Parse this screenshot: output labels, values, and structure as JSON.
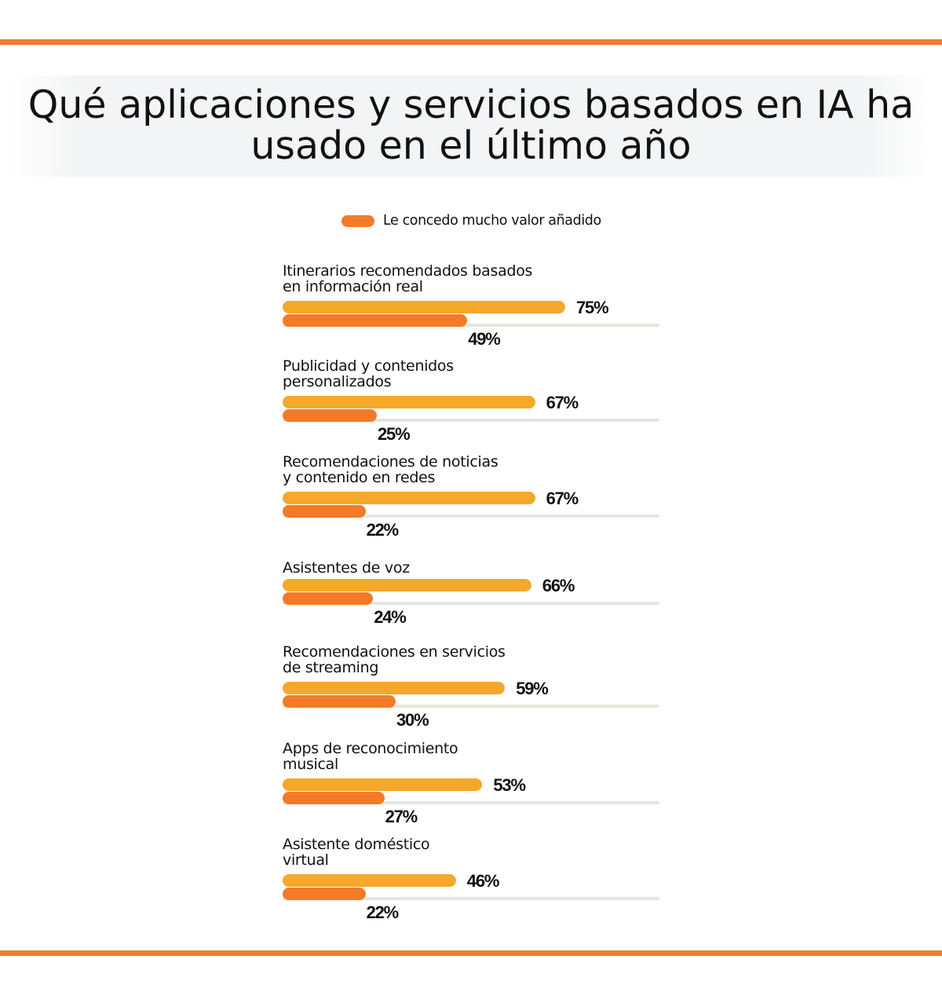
{
  "title": "Qué aplicaciones y servicios basados en IA ha usado en el último año",
  "colors": {
    "rule": "#f47a28",
    "series_a": "#f5a82a",
    "series_b": "#f47a28",
    "track": "#e6e6e0"
  },
  "chart_data": {
    "type": "bar",
    "orientation": "horizontal",
    "title": "Qué aplicaciones y servicios basados en IA ha usado en el último año",
    "xlim": [
      0,
      100
    ],
    "unit": "%",
    "legend": {
      "position": "top-center",
      "entries": [
        "Le concedo mucho valor añadido"
      ]
    },
    "categories": [
      "Itinerarios recomendados basados\nen información real",
      "Publicidad y contenidos\npersonalizados",
      "Recomendaciones de noticias\ny contenido en redes",
      "Asistentes de voz",
      "Recomendaciones en servicios\nde streaming",
      "Apps de reconocimiento\nmusical",
      "Asistente doméstico\nvirtual"
    ],
    "series": [
      {
        "color": "#f5a82a",
        "values": [
          75,
          67,
          67,
          66,
          59,
          53,
          46
        ],
        "labels": [
          "75%",
          "67%",
          "67%",
          "66%",
          "59%",
          "53%",
          "46%"
        ]
      },
      {
        "name": "Le concedo mucho valor añadido",
        "color": "#f47a28",
        "values": [
          49,
          25,
          22,
          24,
          30,
          27,
          22
        ],
        "labels": [
          "49%",
          "25%",
          "22%",
          "24%",
          "30%",
          "27%",
          "22%"
        ]
      }
    ]
  }
}
